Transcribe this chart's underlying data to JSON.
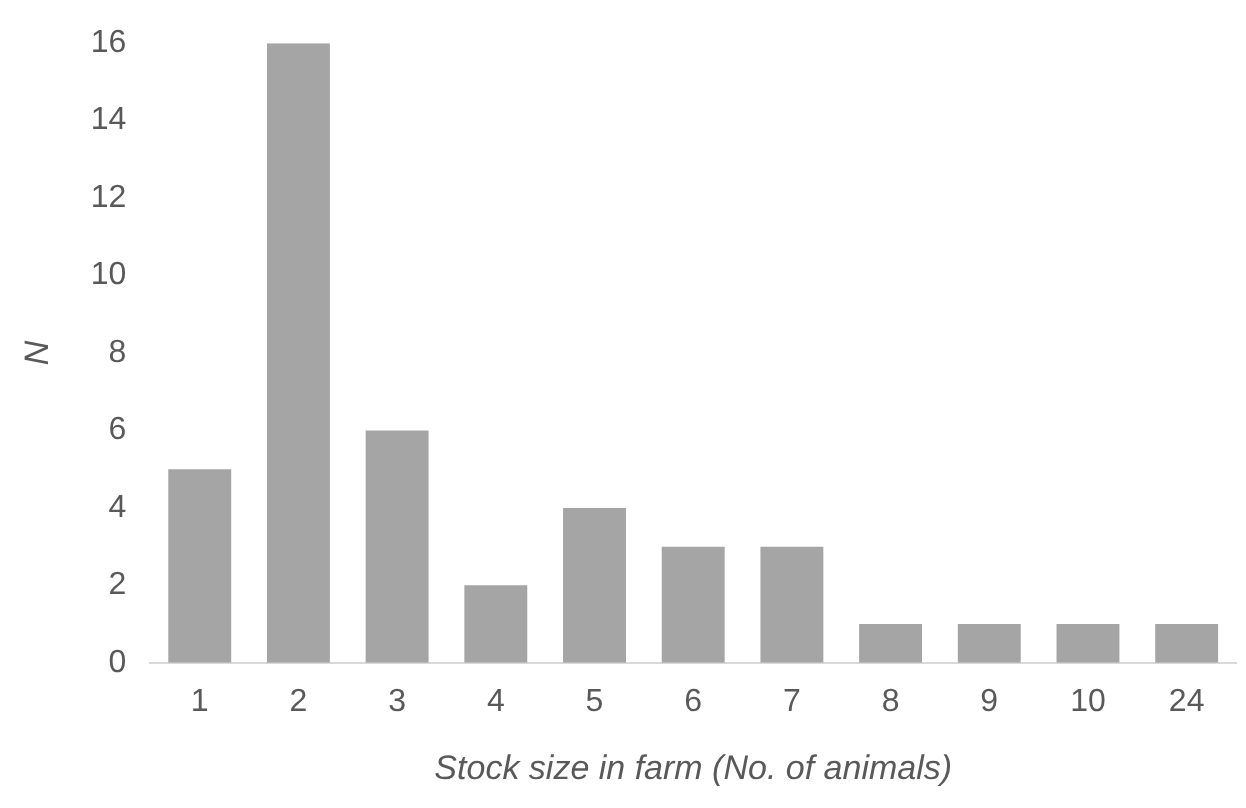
{
  "chart_data": {
    "type": "bar",
    "xlabel": "Stock size in farm (No. of animals)",
    "ylabel": "N",
    "categories": [
      "1",
      "2",
      "3",
      "4",
      "5",
      "6",
      "7",
      "8",
      "9",
      "10",
      "24"
    ],
    "values": [
      5,
      16,
      6,
      2,
      4,
      3,
      3,
      1,
      1,
      1,
      1
    ],
    "color": "#a5a5a5",
    "ylim": [
      0,
      16
    ],
    "yticks": [
      0,
      2,
      4,
      6,
      8,
      10,
      12,
      14,
      16
    ],
    "grid": false,
    "legend": false
  }
}
